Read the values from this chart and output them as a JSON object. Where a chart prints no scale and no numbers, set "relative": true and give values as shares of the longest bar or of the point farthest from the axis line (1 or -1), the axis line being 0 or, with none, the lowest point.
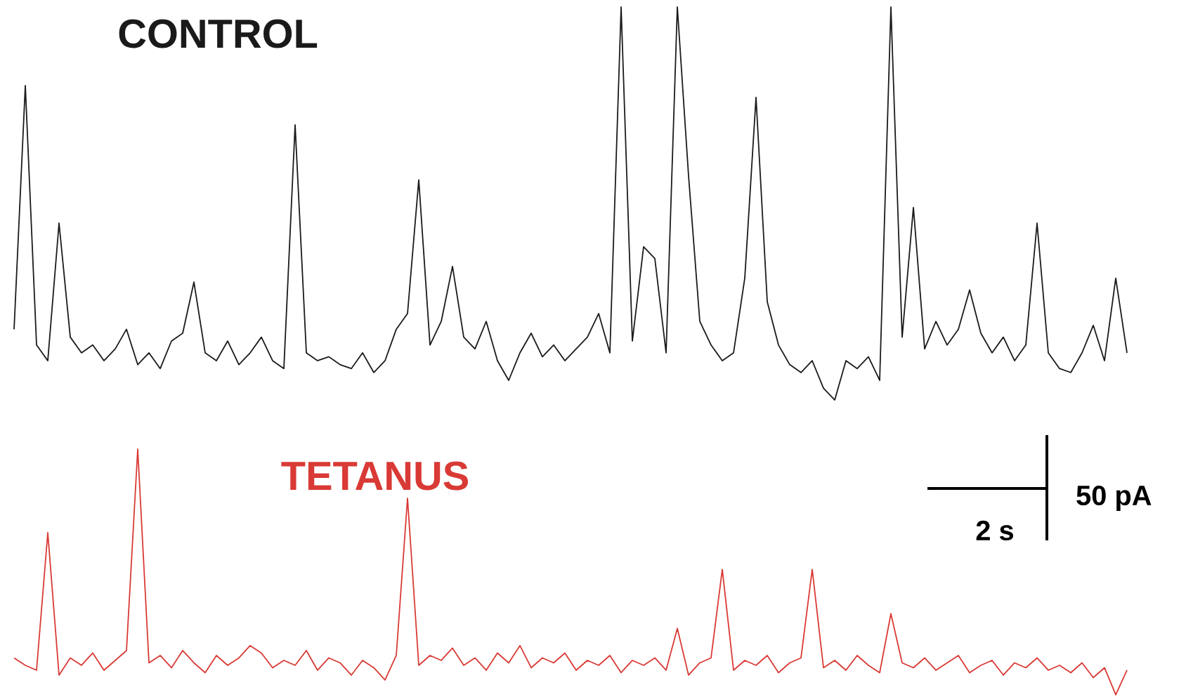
{
  "chart_data": [
    {
      "type": "line",
      "title": "CONTROL",
      "relative": true,
      "color": "#1a1a1a",
      "categories": [
        null,
        null,
        null,
        null,
        null,
        null,
        null,
        null,
        null,
        null,
        null,
        null,
        null,
        null,
        null,
        null,
        null,
        null,
        null,
        null,
        null,
        null,
        null,
        null,
        null,
        null,
        null,
        null,
        null,
        null,
        null,
        null,
        null,
        null,
        null,
        null,
        null,
        null,
        null,
        null,
        null,
        null,
        null,
        null,
        null,
        null,
        null,
        null,
        null,
        null,
        null,
        null,
        null,
        null,
        null,
        null,
        null,
        null,
        null,
        null,
        null,
        null,
        null,
        null,
        null,
        null,
        null,
        null,
        null,
        null,
        null,
        null,
        null,
        null,
        null,
        null,
        null,
        null,
        null,
        null,
        null,
        null,
        null,
        null,
        null,
        null,
        null,
        null,
        null,
        null,
        null,
        null,
        null,
        null,
        null,
        null,
        null,
        null,
        null,
        null
      ],
      "values": [
        0.18,
        0.8,
        0.14,
        0.1,
        0.45,
        0.16,
        0.12,
        0.14,
        0.1,
        0.13,
        0.18,
        0.09,
        0.12,
        0.08,
        0.15,
        0.17,
        0.3,
        0.12,
        0.1,
        0.15,
        0.09,
        0.12,
        0.16,
        0.1,
        0.08,
        0.7,
        0.12,
        0.1,
        0.11,
        0.09,
        0.08,
        0.12,
        0.07,
        0.1,
        0.18,
        0.22,
        0.56,
        0.14,
        0.2,
        0.34,
        0.16,
        0.13,
        0.2,
        0.1,
        0.05,
        0.12,
        0.17,
        0.11,
        0.14,
        0.1,
        0.13,
        0.16,
        0.22,
        0.12,
        1.0,
        0.15,
        0.39,
        0.36,
        0.12,
        1.0,
        0.57,
        0.2,
        0.14,
        0.1,
        0.12,
        0.31,
        0.77,
        0.25,
        0.14,
        0.09,
        0.07,
        0.1,
        0.03,
        0.0,
        0.1,
        0.08,
        0.11,
        0.05,
        1.0,
        0.16,
        0.49,
        0.13,
        0.2,
        0.14,
        0.18,
        0.28,
        0.17,
        0.12,
        0.16,
        0.1,
        0.14,
        0.45,
        0.12,
        0.08,
        0.07,
        0.12,
        0.19,
        0.1,
        0.31,
        0.12
      ]
    },
    {
      "type": "line",
      "title": "TETANUS",
      "relative": true,
      "color": "#d93a35",
      "annotations": [
        "2 s",
        "50 pA"
      ],
      "categories": [
        null,
        null,
        null,
        null,
        null,
        null,
        null,
        null,
        null,
        null,
        null,
        null,
        null,
        null,
        null,
        null,
        null,
        null,
        null,
        null,
        null,
        null,
        null,
        null,
        null,
        null,
        null,
        null,
        null,
        null,
        null,
        null,
        null,
        null,
        null,
        null,
        null,
        null,
        null,
        null,
        null,
        null,
        null,
        null,
        null,
        null,
        null,
        null,
        null,
        null,
        null,
        null,
        null,
        null,
        null,
        null,
        null,
        null,
        null,
        null,
        null,
        null,
        null,
        null,
        null,
        null,
        null,
        null,
        null,
        null,
        null,
        null,
        null,
        null,
        null,
        null,
        null,
        null,
        null,
        null,
        null,
        null,
        null,
        null,
        null,
        null,
        null,
        null,
        null,
        null,
        null,
        null,
        null,
        null,
        null,
        null,
        null,
        null,
        null,
        null
      ],
      "values": [
        0.15,
        0.12,
        0.1,
        0.66,
        0.08,
        0.15,
        0.12,
        0.17,
        0.1,
        0.14,
        0.18,
        1.0,
        0.13,
        0.16,
        0.11,
        0.18,
        0.13,
        0.09,
        0.16,
        0.12,
        0.15,
        0.2,
        0.17,
        0.11,
        0.14,
        0.12,
        0.18,
        0.1,
        0.15,
        0.13,
        0.08,
        0.14,
        0.11,
        0.06,
        0.16,
        0.8,
        0.12,
        0.16,
        0.14,
        0.19,
        0.12,
        0.15,
        0.1,
        0.17,
        0.13,
        0.2,
        0.11,
        0.15,
        0.13,
        0.17,
        0.1,
        0.14,
        0.12,
        0.16,
        0.09,
        0.14,
        0.12,
        0.15,
        0.1,
        0.27,
        0.08,
        0.13,
        0.15,
        0.51,
        0.1,
        0.14,
        0.12,
        0.16,
        0.09,
        0.13,
        0.15,
        0.51,
        0.11,
        0.14,
        0.1,
        0.16,
        0.12,
        0.09,
        0.33,
        0.13,
        0.11,
        0.15,
        0.1,
        0.13,
        0.16,
        0.09,
        0.12,
        0.14,
        0.08,
        0.13,
        0.11,
        0.15,
        0.1,
        0.12,
        0.09,
        0.13,
        0.07,
        0.11,
        0.0,
        0.1
      ]
    }
  ]
}
